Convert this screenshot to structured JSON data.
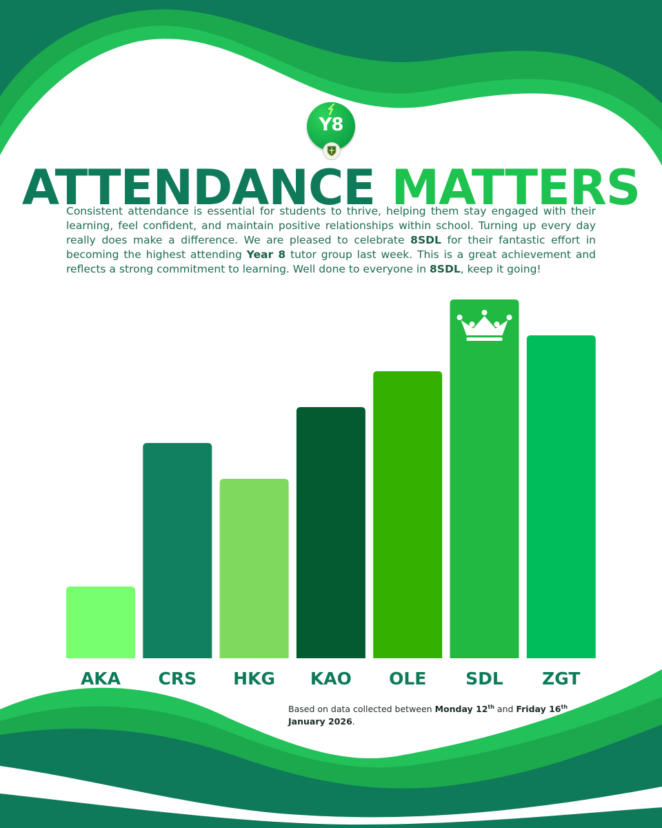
{
  "logo": {
    "text": "Y8"
  },
  "title": {
    "part1": "ATTENDANCE",
    "part2": "MATTERS"
  },
  "intro": {
    "s1": "Consistent attendance is essential for students to thrive, helping them stay engaged with their learning, feel confident, and maintain positive relationships within school. Turning up every day really does make a difference. We are pleased to celebrate ",
    "b1": "8SDL",
    "s2": " for their fantastic effort in becoming the highest attending ",
    "b2": "Year 8",
    "s3": " tutor group last week. This is a great achievement and reflects a strong commitment to learning. Well done to everyone in ",
    "b3": "8SDL",
    "s4": ", keep it going!"
  },
  "footnote": {
    "prefix": "Based on data collected between ",
    "d1": "Monday 12",
    "sup1": "th",
    "mid": " and ",
    "d2": "Friday 16",
    "sup2": "th",
    "d3": "January 2026",
    "end": "."
  },
  "colors": {
    "wave_dark": "#0f7a5a",
    "wave_mid": "#1ca94e",
    "wave_bright": "#22c15a",
    "label": "#0f7a5a"
  },
  "chart_data": {
    "type": "bar",
    "categories": [
      "AKA",
      "CRS",
      "HKG",
      "KAO",
      "OLE",
      "SDL",
      "ZGT"
    ],
    "values": [
      2,
      6,
      5,
      7,
      8,
      10,
      9
    ],
    "colors": [
      "#77ff6e",
      "#118060",
      "#7ed95e",
      "#045b31",
      "#34b001",
      "#21b941",
      "#00bd5b"
    ],
    "highlight": "SDL",
    "highlight_icon": "crown-icon",
    "ylim": [
      0,
      10
    ],
    "title": "",
    "xlabel": "",
    "ylabel": "",
    "grid": false,
    "legend": "none"
  }
}
